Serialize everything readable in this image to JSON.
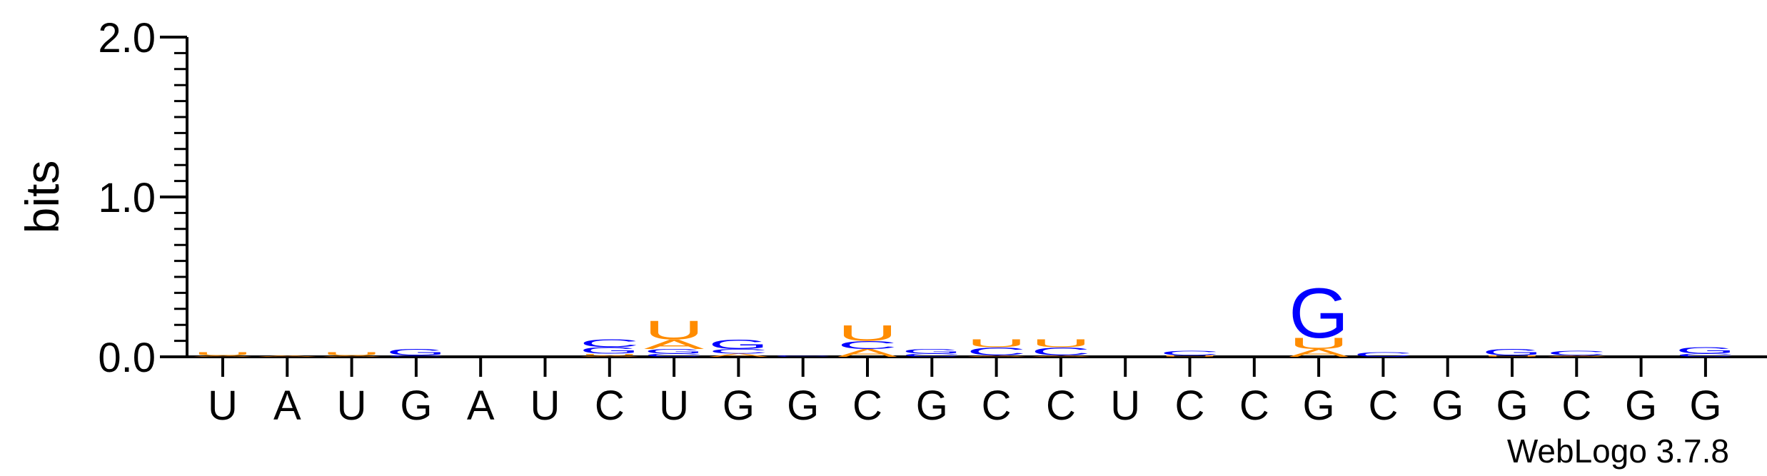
{
  "chart_data": {
    "type": "logo",
    "ylabel": "bits",
    "footnote": "WebLogo 3.7.8",
    "categories": [
      "U",
      "A",
      "U",
      "G",
      "A",
      "U",
      "C",
      "U",
      "G",
      "G",
      "C",
      "G",
      "C",
      "C",
      "U",
      "C",
      "C",
      "G",
      "C",
      "G",
      "G",
      "C",
      "G",
      "G"
    ],
    "series": [
      {
        "name": "A",
        "color": "#ff8c00",
        "values": [
          0.01,
          0.01,
          0.01,
          0,
          0,
          0,
          0.01,
          0.06,
          0.02,
          0,
          0.05,
          0,
          0.01,
          0.01,
          0,
          0,
          0,
          0.05,
          0,
          0,
          0,
          0.01,
          0,
          0
        ]
      },
      {
        "name": "C",
        "color": "#0000ff",
        "values": [
          0,
          0,
          0,
          0.01,
          0,
          0,
          0.05,
          0.02,
          0.03,
          0.01,
          0.05,
          0.02,
          0.05,
          0.05,
          0,
          0.03,
          0,
          0,
          0.03,
          0,
          0,
          0.03,
          0,
          0.02
        ]
      },
      {
        "name": "G",
        "color": "#0000ff",
        "values": [
          0,
          0,
          0,
          0.04,
          0,
          0,
          0.04,
          0.03,
          0.06,
          0,
          0,
          0.03,
          0,
          0,
          0,
          0,
          0,
          0.32,
          0,
          0,
          0.04,
          0,
          0,
          0.04
        ]
      },
      {
        "name": "U",
        "color": "#ff8c00",
        "values": [
          0.02,
          0,
          0.02,
          0,
          0,
          0,
          0.01,
          0.12,
          0,
          0,
          0.1,
          0,
          0.05,
          0.05,
          0,
          0.01,
          0,
          0.07,
          0,
          0,
          0.01,
          0,
          0,
          0
        ]
      }
    ],
    "ylim": [
      0,
      2
    ],
    "yticks": [
      {
        "value": 0,
        "label": "0.0"
      },
      {
        "value": 1,
        "label": "1.0"
      },
      {
        "value": 2,
        "label": "2.0"
      }
    ]
  }
}
